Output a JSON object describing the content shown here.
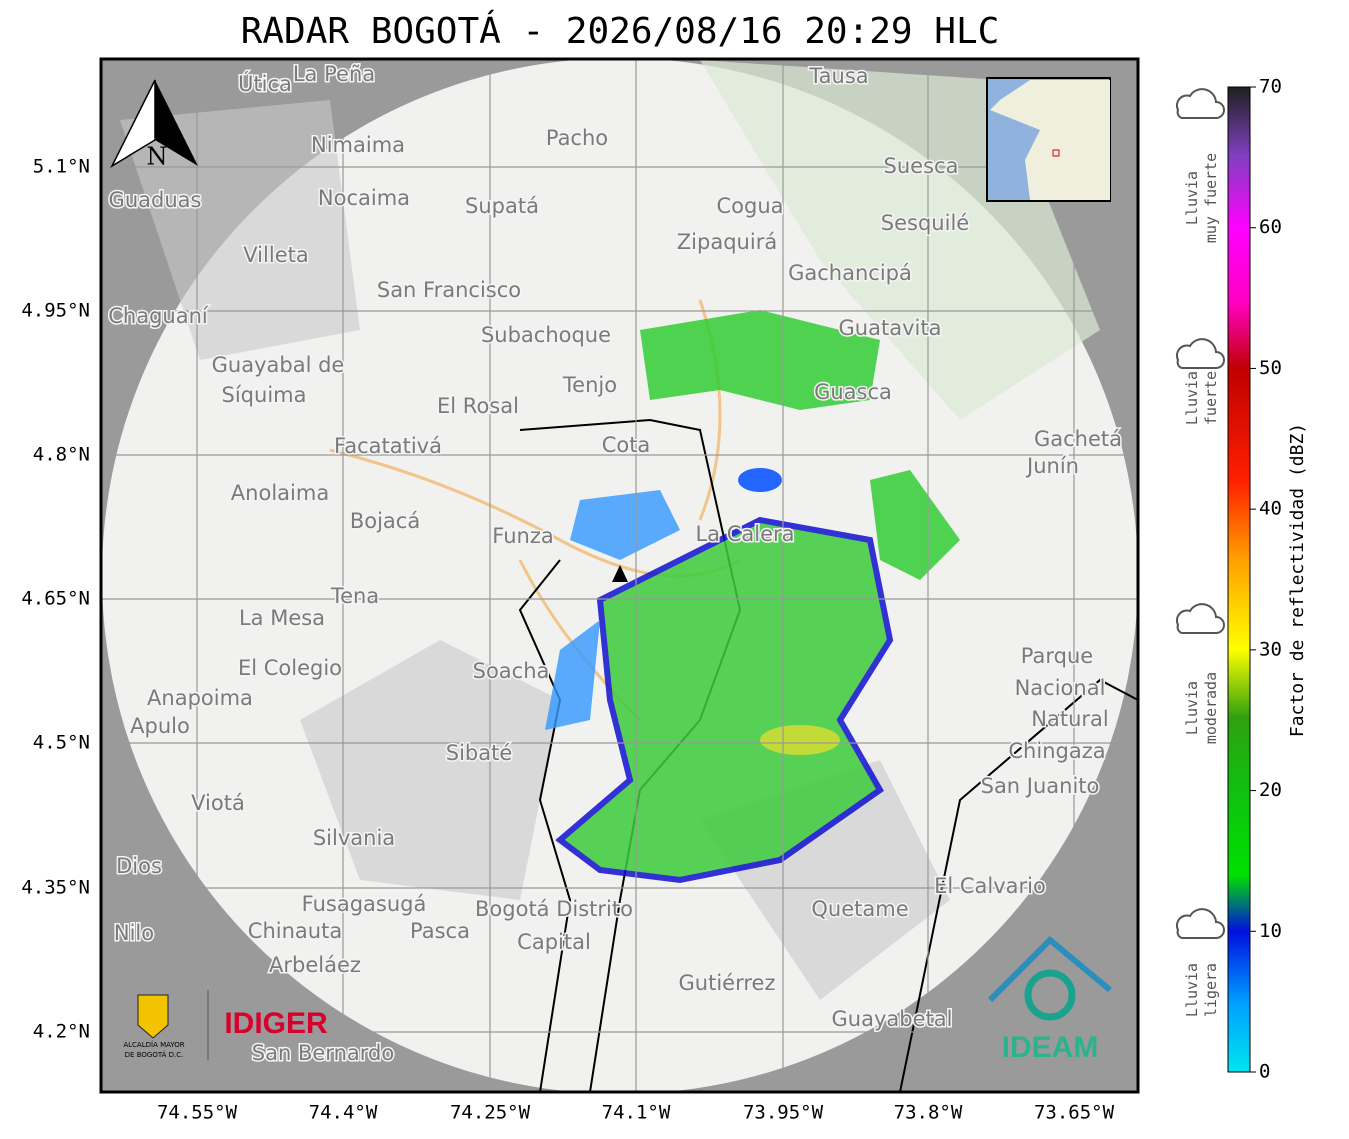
{
  "title": "RADAR BOGOTÁ - 2026/08/16 20:29 HLC",
  "lat_labels": [
    "5.1°N",
    "4.95°N",
    "4.8°N",
    "4.65°N",
    "4.5°N",
    "4.35°N",
    "4.2°N"
  ],
  "lon_labels": [
    "74.55°W",
    "74.4°W",
    "74.25°W",
    "74.1°W",
    "73.95°W",
    "73.8°W",
    "73.65°W"
  ],
  "north": "N",
  "colorbar": {
    "label": "Factor de reflectividad (dBZ)",
    "lim": [
      0,
      70
    ],
    "ticks": [
      0,
      10,
      20,
      30,
      40,
      50,
      60,
      70
    ]
  },
  "rain_legend": [
    [
      "Lluvia",
      "muy fuerte"
    ],
    [
      "Lluvia",
      "fuerte"
    ],
    [
      "Lluvia",
      "moderada"
    ],
    [
      "Lluvia",
      "ligera"
    ]
  ],
  "logos": {
    "alcaldia": [
      "ALCALDÍA MAYOR",
      "DE BOGOTÁ D.C."
    ],
    "idiger": "IDIGER",
    "ideam": "IDEAM"
  },
  "places": [
    "La Peña",
    "Útica",
    "Tausa",
    "Pacho",
    "Nimaima",
    "Suesca",
    "Guaduas",
    "Nocaima",
    "Supatá",
    "Cogua",
    "Sesquilé",
    "Zipaquirá",
    "Villeta",
    "Gachancipá",
    "San Francisco",
    "Chaguaní",
    "Guatavita",
    "Subachoque",
    "Guayabal de",
    "Síquima",
    "Tenjo",
    "Guasca",
    "El Rosal",
    "Cota",
    "Facatativá",
    "Gachetá",
    "Junín",
    "Anolaima",
    "Bojacá",
    "Funza",
    "La Calera",
    "Tena",
    "La Mesa",
    "Parque",
    "Nacional",
    "Natural",
    "Chingaza",
    "Soacha",
    "El Colegio",
    "Anapoima",
    "Apulo",
    "Sibaté",
    "San Juanito",
    "Viotá",
    "Silvania",
    "Dios",
    "El Calvario",
    "Fusagasugá",
    "Bogotá Distrito",
    "Capital",
    "Quetame",
    "Nilo",
    "Chinauta",
    "Pasca",
    "Arbeláez",
    "Gutiérrez",
    "Guayabetal",
    "San Bernardo"
  ]
}
